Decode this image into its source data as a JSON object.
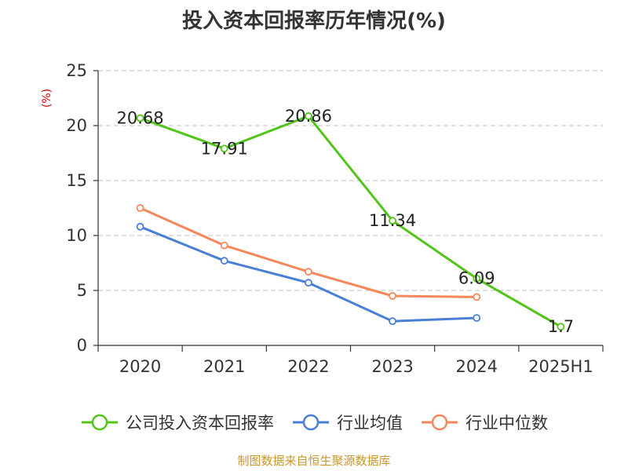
{
  "title": "投入资本回报率历年情况(%)",
  "source": "制图数据来自恒生聚源数据库",
  "colors": {
    "company": "#52c41a",
    "industry_avg": "#4a7fd8",
    "industry_median": "#f5875a",
    "grid": "#cccccc",
    "axis": "#333333"
  },
  "chart_data": {
    "type": "line",
    "title": "投入资本回报率历年情况(%)",
    "ylabel": "(%)",
    "xlabel": "",
    "categories": [
      "2020",
      "2021",
      "2022",
      "2023",
      "2024",
      "2025H1"
    ],
    "ylim": [
      0,
      25
    ],
    "yticks": [
      0,
      5,
      10,
      15,
      20,
      25
    ],
    "grid": true,
    "legend_position": "bottom",
    "series": [
      {
        "name": "公司投入资本回报率",
        "key": "company",
        "values": [
          20.68,
          17.91,
          20.86,
          11.34,
          6.09,
          1.7
        ],
        "labels": [
          "20.68",
          "17.91",
          "20.86",
          "11.34",
          "6.09",
          "1.7"
        ]
      },
      {
        "name": "行业均值",
        "key": "industry_avg",
        "values": [
          10.8,
          7.7,
          5.7,
          2.2,
          2.5,
          null
        ]
      },
      {
        "name": "行业中位数",
        "key": "industry_median",
        "values": [
          12.5,
          9.1,
          6.7,
          4.5,
          4.4,
          null
        ]
      }
    ]
  }
}
